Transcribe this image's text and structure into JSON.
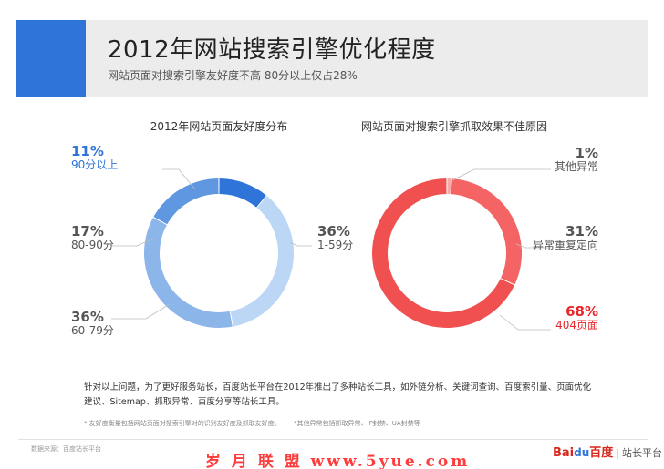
{
  "header": {
    "title": "2012年网站搜索引擎优化程度",
    "subtitle": "网站页面对搜索引擎友好度不高  80分以上仅占28%"
  },
  "chart_data": [
    {
      "type": "pie",
      "title": "2012年网站页面友好度分布",
      "slices": [
        {
          "label": "90分以上",
          "pct_label": "11%",
          "value": 11,
          "color": "#2f74d8"
        },
        {
          "label": "1-59分",
          "pct_label": "36%",
          "value": 36,
          "color": "#bcd6f5"
        },
        {
          "label": "60-79分",
          "pct_label": "36%",
          "value": 36,
          "color": "#8cb6ea"
        },
        {
          "label": "80-90分",
          "pct_label": "17%",
          "value": 17,
          "color": "#5f97e0"
        }
      ]
    },
    {
      "type": "pie",
      "title": "网站页面对搜索引擎抓取效果不佳原因",
      "slices": [
        {
          "label": "其他异常",
          "pct_label": "1%",
          "value": 1,
          "color": "#f5a9a9"
        },
        {
          "label": "异常重复定向",
          "pct_label": "31%",
          "value": 31,
          "color": "#f46464"
        },
        {
          "label": "404页面",
          "pct_label": "68%",
          "value": 68,
          "color": "#f05050"
        }
      ]
    }
  ],
  "colors": {
    "accent_blue": "#2f74d8",
    "accent_red": "#e8262a",
    "label_gray": "#555555"
  },
  "note": "针对以上问题，为了更好服务站长，百度站长平台在2012年推出了多种站长工具，如外链分析、关键词查询、百度索引量、页面优化建议、Sitemap、抓取异常、百度分享等站长工具。",
  "footnotes": {
    "left": "* 友好度衡量包括网站页面对搜索引擎对的识别友好度及抓取友好度。",
    "right": "*其他异常包括抓取异常、IP封禁、UA封禁等"
  },
  "source": "数据来源：百度站长平台",
  "watermark": "岁 月 联 盟  www.5yue.com",
  "brand": {
    "bai": "Bai",
    "du": "du",
    "baidu": "百度",
    "platform": "站长平台"
  }
}
